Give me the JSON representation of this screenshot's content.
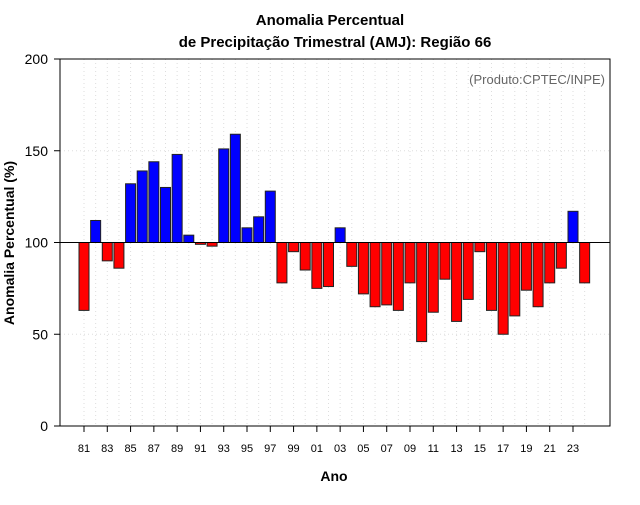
{
  "chart_data": {
    "type": "bar",
    "title_line1": "Anomalia Percentual",
    "title_line2": "de Precipitação Trimestral (AMJ): Região 66",
    "xlabel": "Ano",
    "ylabel": "Anomalia Percentual (%)",
    "annotation": "(Produto:CPTEC/INPE)",
    "ylim": [
      0,
      200
    ],
    "baseline": 100,
    "yticks": [
      0,
      50,
      100,
      150,
      200
    ],
    "xtick_labels": [
      "81",
      "83",
      "85",
      "87",
      "89",
      "91",
      "93",
      "95",
      "97",
      "99",
      "01",
      "03",
      "05",
      "07",
      "09",
      "11",
      "13",
      "15",
      "17",
      "19",
      "21",
      "23"
    ],
    "grid": true,
    "colors": {
      "above": "#0000ff",
      "below": "#ff0000"
    },
    "categories": [
      1981,
      1982,
      1983,
      1984,
      1985,
      1986,
      1987,
      1988,
      1989,
      1990,
      1991,
      1992,
      1993,
      1994,
      1995,
      1996,
      1997,
      1998,
      1999,
      2000,
      2001,
      2002,
      2003,
      2004,
      2005,
      2006,
      2007,
      2008,
      2009,
      2010,
      2011,
      2012,
      2013,
      2014,
      2015,
      2016,
      2017,
      2018,
      2019,
      2020,
      2021,
      2022,
      2023,
      2024
    ],
    "values": [
      63,
      112,
      90,
      86,
      132,
      139,
      144,
      130,
      148,
      104,
      99,
      98,
      151,
      159,
      108,
      114,
      128,
      78,
      95,
      85,
      75,
      76,
      108,
      87,
      72,
      65,
      66,
      63,
      78,
      46,
      62,
      80,
      57,
      69,
      95,
      63,
      50,
      60,
      74,
      65,
      78,
      86,
      117,
      78
    ]
  }
}
